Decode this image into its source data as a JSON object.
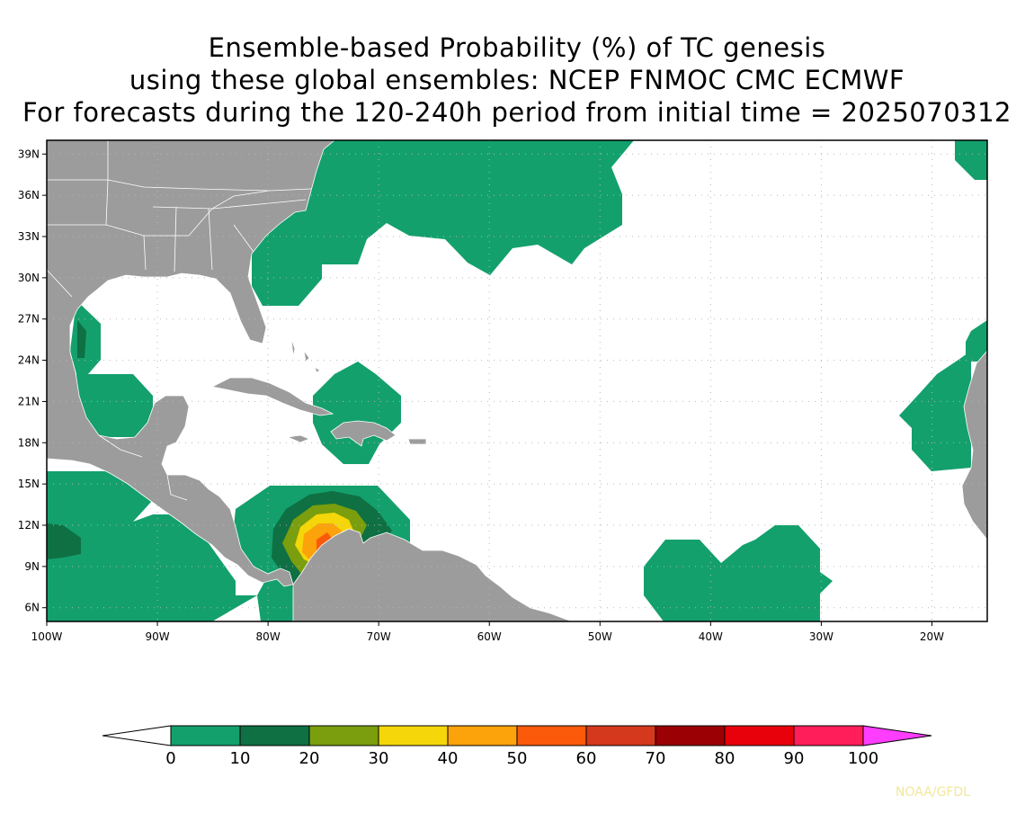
{
  "title_lines": [
    "Ensemble-based Probability (%) of TC genesis",
    "using these global ensembles:   NCEP FNMOC CMC ECMWF",
    "For forecasts during the 120-240h period from initial time = 2025070312"
  ],
  "map": {
    "lat_labels": [
      "39N",
      "36N",
      "33N",
      "30N",
      "27N",
      "24N",
      "21N",
      "18N",
      "15N",
      "12N",
      "9N",
      "6N"
    ],
    "lon_labels": [
      "100W",
      "90W",
      "80W",
      "70W",
      "60W",
      "50W",
      "40W",
      "30W",
      "20W"
    ],
    "lat_values": [
      39,
      36,
      33,
      30,
      27,
      24,
      21,
      18,
      15,
      12,
      9,
      6
    ],
    "lon_values": [
      -100,
      -90,
      -80,
      -70,
      -60,
      -50,
      -40,
      -30,
      -20
    ],
    "lon_range": [
      -100,
      -15
    ],
    "lat_range": [
      5,
      40
    ],
    "land_color": "#9c9c9c",
    "ocean_color": "#ffffff"
  },
  "colorbar": {
    "tick_labels": [
      "0",
      "10",
      "20",
      "30",
      "40",
      "50",
      "60",
      "70",
      "80",
      "90",
      "100"
    ],
    "colors": [
      "#ffffff",
      "#13a06d",
      "#0e7043",
      "#7a9e0d",
      "#f4d60a",
      "#fca20a",
      "#fa5a0a",
      "#d4381d",
      "#9a0004",
      "#e8000b",
      "#ff1e5a",
      "#ff3dff"
    ]
  },
  "credit": "NOAA/GFDL"
}
